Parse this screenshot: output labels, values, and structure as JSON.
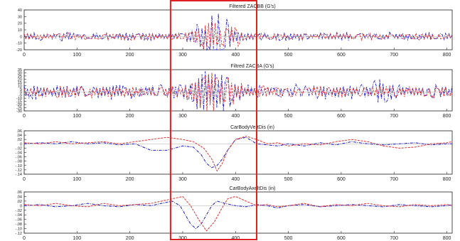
{
  "chart_data": [
    {
      "type": "line",
      "title": "Filtered ZACBB (G's)",
      "xlim": [
        0,
        810
      ],
      "ylim": [
        -20,
        40
      ],
      "xticks": [
        0,
        100,
        200,
        300,
        400,
        500,
        600,
        700,
        800
      ],
      "yticks": [
        40,
        30,
        20,
        10,
        0,
        -10,
        -20
      ],
      "ytick_labels": [
        "40",
        "30",
        "20",
        "10",
        "0",
        "-10",
        "-20"
      ],
      "grid": false,
      "series": [
        {
          "color": "#1a1acc",
          "style": "dash-dot",
          "kind": "oscillation",
          "noise_amp": 7,
          "bursts": [
            {
              "at": 365,
              "width": 25,
              "amp": 34
            },
            {
              "at": 325,
              "width": 12,
              "amp": 10
            }
          ]
        },
        {
          "color": "#e03030",
          "style": "dash",
          "kind": "oscillation",
          "noise_amp": 6,
          "bursts": [
            {
              "at": 350,
              "width": 30,
              "amp": 18
            },
            {
              "at": 400,
              "width": 15,
              "amp": 10
            }
          ]
        }
      ]
    },
    {
      "type": "line",
      "title": "Filtred ZACBA (G's)",
      "xlim": [
        0,
        810
      ],
      "ylim": [
        -30,
        35
      ],
      "xticks": [
        0,
        100,
        200,
        300,
        400,
        500,
        600,
        700,
        800
      ],
      "yticks": [
        35,
        30,
        25,
        20,
        15,
        10,
        5,
        0,
        -5,
        -10,
        -15,
        -20,
        -25,
        -30
      ],
      "ytick_labels": [
        "35",
        "30",
        "25",
        "20",
        "15",
        "10",
        "5",
        "0",
        "-5",
        "-10",
        "-15",
        "-20",
        "-25",
        "-30"
      ],
      "grid": false,
      "series": [
        {
          "color": "#1a1acc",
          "style": "dash-dot",
          "kind": "oscillation",
          "noise_amp": 13,
          "bursts": [
            {
              "at": 335,
              "width": 18,
              "amp": 30
            },
            {
              "at": 375,
              "width": 20,
              "amp": 25
            },
            {
              "at": 680,
              "width": 20,
              "amp": 10
            }
          ]
        },
        {
          "color": "#e03030",
          "style": "dash",
          "kind": "oscillation",
          "noise_amp": 11,
          "bursts": [
            {
              "at": 350,
              "width": 25,
              "amp": 28
            },
            {
              "at": 395,
              "width": 15,
              "amp": 14
            }
          ]
        }
      ]
    },
    {
      "type": "line",
      "title": "CarBodyVertDis (in)",
      "xlim": [
        0,
        810
      ],
      "ylim": [
        -0.14,
        0.06
      ],
      "xticks": [
        0,
        100,
        200,
        300,
        400,
        500,
        600,
        700,
        800
      ],
      "yticks": [
        0.06,
        0.04,
        0.02,
        0,
        -0.02,
        -0.04,
        -0.06,
        -0.08,
        -0.1,
        -0.12,
        -0.14
      ],
      "ytick_labels": [
        ".06",
        ".04",
        ".02",
        "0",
        "-.02",
        "-.04",
        "-.06",
        "-.08",
        "-.10",
        "-.12",
        "-.14"
      ],
      "grid": false,
      "series": [
        {
          "color": "#1a1acc",
          "style": "dash-dot",
          "kind": "smooth",
          "x": [
            0,
            30,
            60,
            90,
            120,
            150,
            180,
            210,
            240,
            270,
            300,
            320,
            335,
            345,
            355,
            365,
            375,
            385,
            400,
            420,
            440,
            460,
            480,
            500,
            530,
            560,
            590,
            620,
            650,
            680,
            710,
            740,
            770,
            800,
            810
          ],
          "y": [
            0.0,
            0.005,
            0.0,
            0.01,
            0.0,
            0.005,
            -0.005,
            0.0,
            -0.03,
            -0.03,
            -0.01,
            -0.015,
            -0.05,
            -0.09,
            -0.11,
            -0.1,
            -0.07,
            -0.03,
            0.02,
            0.03,
            0.0,
            -0.005,
            -0.01,
            0.0,
            -0.01,
            0.005,
            -0.005,
            0.01,
            0.0,
            -0.005,
            0.0,
            0.005,
            -0.005,
            0.0,
            0.0
          ]
        },
        {
          "color": "#e03030",
          "style": "dash",
          "kind": "smooth",
          "x": [
            0,
            30,
            60,
            90,
            120,
            150,
            180,
            210,
            240,
            270,
            300,
            320,
            340,
            355,
            365,
            375,
            385,
            400,
            420,
            440,
            460,
            480,
            500,
            530,
            560,
            590,
            620,
            650,
            680,
            710,
            740,
            770,
            800,
            810
          ],
          "y": [
            0.005,
            0.0,
            0.01,
            0.0,
            0.005,
            0.01,
            0.0,
            0.01,
            0.02,
            0.03,
            0.02,
            0.01,
            -0.02,
            -0.07,
            -0.125,
            -0.09,
            -0.03,
            0.02,
            0.035,
            0.02,
            0.0,
            0.005,
            -0.01,
            0.0,
            -0.005,
            0.01,
            0.02,
            0.01,
            -0.01,
            -0.02,
            -0.015,
            0.0,
            0.005,
            0.01
          ]
        }
      ]
    },
    {
      "type": "line",
      "title": "CarBodyAxeltDis (in)",
      "xlim": [
        0,
        810
      ],
      "ylim": [
        -0.12,
        0.06
      ],
      "xticks": [
        0,
        100,
        200,
        300,
        400,
        500,
        600,
        700,
        800
      ],
      "yticks": [
        0.06,
        0.04,
        0.02,
        0,
        -0.02,
        -0.04,
        -0.06,
        -0.08,
        -0.1,
        -0.12
      ],
      "ytick_labels": [
        ".06",
        ".04",
        ".02",
        "0",
        "-.02",
        "-.04",
        "-.06",
        "-.08",
        "-.10",
        "-.12"
      ],
      "grid": false,
      "series": [
        {
          "color": "#1a1acc",
          "style": "dash-dot",
          "kind": "smooth",
          "x": [
            0,
            30,
            60,
            90,
            120,
            150,
            180,
            210,
            240,
            260,
            280,
            295,
            305,
            315,
            325,
            335,
            345,
            355,
            365,
            380,
            400,
            420,
            440,
            460,
            480,
            500,
            530,
            560,
            590,
            620,
            650,
            680,
            710,
            740,
            770,
            800,
            810
          ],
          "y": [
            0.0,
            0.005,
            -0.005,
            0.0,
            0.01,
            0.0,
            -0.005,
            0.005,
            0.0,
            0.01,
            0.02,
            0.0,
            -0.04,
            -0.08,
            -0.1,
            -0.08,
            -0.04,
            0.0,
            0.02,
            0.01,
            0.0,
            -0.005,
            0.005,
            0.0,
            -0.01,
            0.0,
            0.005,
            -0.005,
            0.0,
            0.005,
            0.0,
            -0.005,
            0.005,
            0.0,
            -0.005,
            0.0,
            0.005
          ]
        },
        {
          "color": "#e03030",
          "style": "dash",
          "kind": "smooth",
          "x": [
            0,
            30,
            60,
            90,
            120,
            150,
            180,
            210,
            240,
            260,
            280,
            300,
            315,
            330,
            345,
            360,
            372,
            385,
            400,
            420,
            440,
            460,
            480,
            500,
            530,
            560,
            590,
            620,
            650,
            680,
            710,
            740,
            770,
            800,
            810
          ],
          "y": [
            0.005,
            0.0,
            0.01,
            0.0,
            -0.005,
            0.01,
            0.0,
            0.005,
            0.01,
            0.02,
            0.03,
            0.04,
            0.0,
            -0.06,
            -0.11,
            -0.07,
            -0.02,
            0.03,
            0.04,
            0.02,
            0.0,
            0.005,
            -0.005,
            0.0,
            0.01,
            -0.005,
            0.005,
            0.0,
            0.01,
            0.0,
            -0.005,
            0.005,
            0.0,
            0.005,
            0.0
          ]
        }
      ]
    }
  ],
  "highlight": {
    "x_start": 277,
    "x_end": 440,
    "color": "#e02020"
  },
  "colors": {
    "axis": "#222222",
    "blue": "#1a1acc",
    "red": "#e03030"
  }
}
